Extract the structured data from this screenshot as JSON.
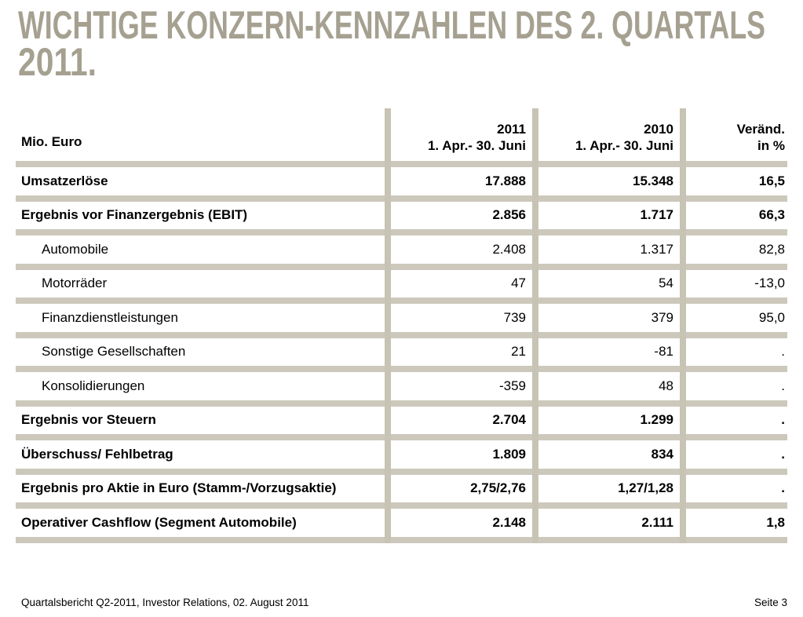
{
  "title": {
    "line1": "WICHTIGE KONZERN-KENNZAHLEN DES 2. QUARTALS",
    "line2": "2011."
  },
  "colors": {
    "title_text": "#A5A090",
    "horizontal_divider": "#CCC8BB",
    "vertical_divider": "#C7C3B5",
    "body_text": "#000000",
    "background": "#FFFFFF"
  },
  "table": {
    "unit_label": "Mio. Euro",
    "columns": [
      {
        "year": "2011",
        "period": "1. Apr.- 30. Juni"
      },
      {
        "year": "2010",
        "period": "1. Apr.- 30. Juni"
      },
      {
        "year": "Veränd.",
        "period": "in %"
      }
    ],
    "rows": [
      {
        "label": "Umsatzerlöse",
        "v2011": "17.888",
        "v2010": "15.348",
        "change": "16,5",
        "bold": true,
        "indent": false
      },
      {
        "label": "Ergebnis vor Finanzergebnis (EBIT)",
        "v2011": "2.856",
        "v2010": "1.717",
        "change": "66,3",
        "bold": true,
        "indent": false
      },
      {
        "label": "Automobile",
        "v2011": "2.408",
        "v2010": "1.317",
        "change": "82,8",
        "bold": false,
        "indent": true
      },
      {
        "label": "Motorräder",
        "v2011": "47",
        "v2010": "54",
        "change": "-13,0",
        "bold": false,
        "indent": true
      },
      {
        "label": "Finanzdienstleistungen",
        "v2011": "739",
        "v2010": "379",
        "change": "95,0",
        "bold": false,
        "indent": true
      },
      {
        "label": "Sonstige Gesellschaften",
        "v2011": "21",
        "v2010": "-81",
        "change": ".",
        "bold": false,
        "indent": true
      },
      {
        "label": "Konsolidierungen",
        "v2011": "-359",
        "v2010": "48",
        "change": ".",
        "bold": false,
        "indent": true
      },
      {
        "label": "Ergebnis vor Steuern",
        "v2011": "2.704",
        "v2010": "1.299",
        "change": ".",
        "bold": true,
        "indent": false
      },
      {
        "label": "Überschuss/ Fehlbetrag",
        "v2011": "1.809",
        "v2010": "834",
        "change": ".",
        "bold": true,
        "indent": false
      },
      {
        "label": "Ergebnis pro Aktie in Euro (Stamm-/Vorzugsaktie)",
        "v2011": "2,75/2,76",
        "v2010": "1,27/1,28",
        "change": ".",
        "bold": true,
        "indent": false
      },
      {
        "label": "Operativer Cashflow (Segment Automobile)",
        "v2011": "2.148",
        "v2010": "2.111",
        "change": "1,8",
        "bold": true,
        "indent": false
      }
    ]
  },
  "footer": {
    "left": "Quartalsbericht Q2-2011, Investor Relations, 02. August 2011",
    "right": "Seite 3"
  }
}
